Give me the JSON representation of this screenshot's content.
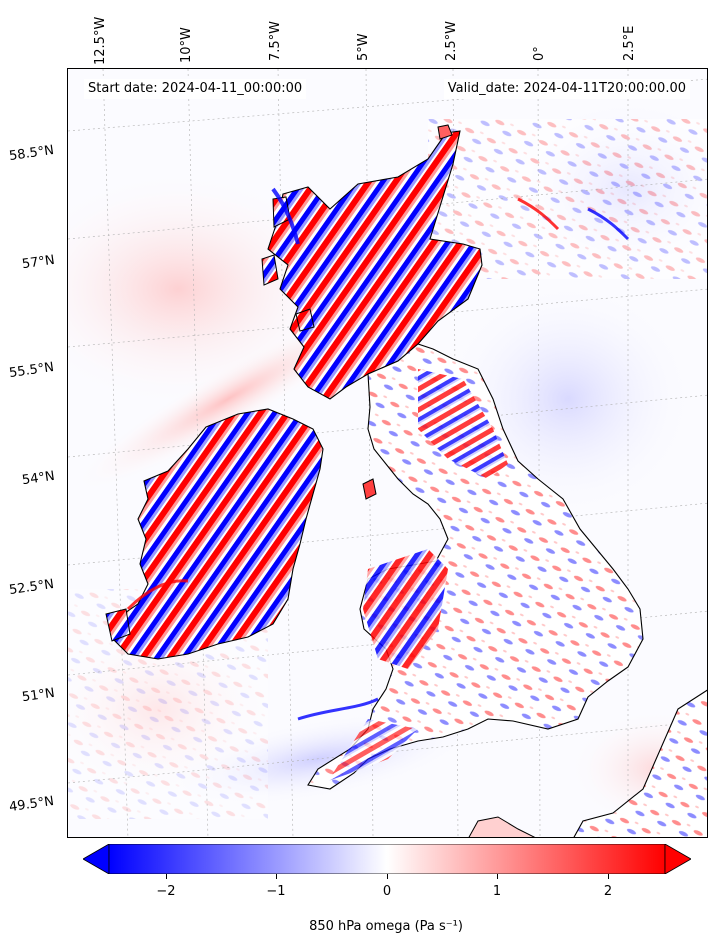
{
  "map": {
    "start_label": "Start date: 2024-04-11_00:00:00",
    "valid_label": "Valid_date: 2024-04-11T20:00:00.00",
    "lon_labels": [
      "12.5°W",
      "10°W",
      "7.5°W",
      "5°W",
      "2.5°W",
      "0°",
      "2.5°E"
    ],
    "lat_labels": [
      "58.5°N",
      "57°N",
      "55.5°N",
      "54°N",
      "52.5°N",
      "51°N",
      "49.5°N"
    ],
    "colors": {
      "negative": "#0000ff",
      "positive": "#ff0000",
      "coast": "#000000"
    }
  },
  "colorbar": {
    "label": "850 hPa omega (Pa s⁻¹)",
    "ticks": [
      "−2",
      "−1",
      "0",
      "1",
      "2"
    ],
    "tick_values": [
      -2,
      -1,
      0,
      1,
      2
    ],
    "range": [
      -2.5,
      2.5
    ],
    "extend": "both",
    "colormap": "bwr"
  }
}
